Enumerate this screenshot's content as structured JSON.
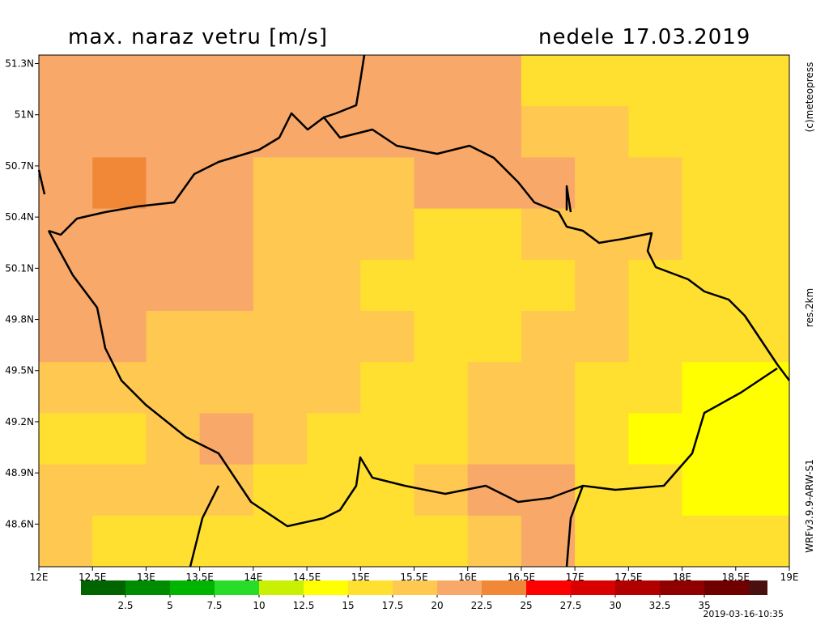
{
  "title": "max. naraz vetru [m/s]",
  "date": "nedele 17.03.2019",
  "credit": "(c)meteopress",
  "resolution": "res.2km",
  "model": "WRFv3.9.9-ARW-S1",
  "timestamp": "2019-03-16-10:35",
  "map": {
    "lonlim": [
      12,
      19
    ],
    "latlim": [
      48.35,
      51.35
    ],
    "lon_ticks": [
      {
        "value": 12,
        "label": "12E"
      },
      {
        "value": 12.5,
        "label": "12.5E"
      },
      {
        "value": 13,
        "label": "13E"
      },
      {
        "value": 13.5,
        "label": "13.5E"
      },
      {
        "value": 14,
        "label": "14E"
      },
      {
        "value": 14.5,
        "label": "14.5E"
      },
      {
        "value": 15,
        "label": "15E"
      },
      {
        "value": 15.5,
        "label": "15.5E"
      },
      {
        "value": 16,
        "label": "16E"
      },
      {
        "value": 16.5,
        "label": "16.5E"
      },
      {
        "value": 17,
        "label": "17E"
      },
      {
        "value": 17.5,
        "label": "17.5E"
      },
      {
        "value": 18,
        "label": "18E"
      },
      {
        "value": 18.5,
        "label": "18.5E"
      },
      {
        "value": 19,
        "label": "19E"
      }
    ],
    "lat_ticks": [
      {
        "value": 48.6,
        "label": "48.6N"
      },
      {
        "value": 48.9,
        "label": "48.9N"
      },
      {
        "value": 49.2,
        "label": "49.2N"
      },
      {
        "value": 49.5,
        "label": "49.5N"
      },
      {
        "value": 49.8,
        "label": "49.8N"
      },
      {
        "value": 50.1,
        "label": "50.1N"
      },
      {
        "value": 50.4,
        "label": "50.4N"
      },
      {
        "value": 50.7,
        "label": "50.7N"
      },
      {
        "value": 51,
        "label": "51N"
      },
      {
        "value": 51.3,
        "label": "51.3N"
      }
    ],
    "wind_field": [
      [
        21,
        21,
        21,
        21,
        21,
        20,
        21,
        21,
        20,
        17,
        16,
        16,
        15,
        15
      ],
      [
        22,
        22,
        22,
        21,
        21,
        21,
        20,
        22,
        21,
        19,
        18,
        17,
        16,
        15
      ],
      [
        22,
        23,
        22,
        21,
        19,
        18,
        18,
        20,
        22,
        22,
        19,
        18,
        17,
        16
      ],
      [
        22,
        21,
        21,
        20,
        19,
        18,
        18,
        17,
        16,
        18,
        18,
        18,
        17,
        16
      ],
      [
        21,
        21,
        20,
        20,
        19,
        18,
        17,
        16,
        16,
        17,
        18,
        17,
        17,
        17
      ],
      [
        20,
        20,
        19,
        19,
        18,
        18,
        18,
        17,
        17,
        18,
        18,
        17,
        16,
        16
      ],
      [
        19,
        19,
        19,
        19,
        18,
        18,
        17,
        17,
        18,
        18,
        16,
        15,
        14,
        14
      ],
      [
        17,
        17,
        19,
        20,
        18,
        17,
        17,
        17,
        18,
        19,
        17,
        14,
        14,
        13
      ],
      [
        18,
        19,
        19,
        18,
        17,
        16,
        16,
        18,
        21,
        20,
        16,
        15,
        14,
        14
      ],
      [
        18,
        17,
        17,
        17,
        17,
        16,
        15,
        16,
        19,
        20,
        17,
        15,
        15,
        15
      ]
    ]
  },
  "colorbar": {
    "colors": [
      "#006400",
      "#008c00",
      "#00b400",
      "#28dc28",
      "#c8f000",
      "#ffff00",
      "#ffe030",
      "#ffc850",
      "#f8a868",
      "#f08838",
      "#ff0000",
      "#d80000",
      "#b00000",
      "#900000",
      "#700000",
      "#4a1010"
    ],
    "ticks": [
      2.5,
      5,
      7.5,
      10,
      12.5,
      15,
      17.5,
      20,
      22.5,
      25,
      27.5,
      30,
      32.5,
      35
    ]
  }
}
